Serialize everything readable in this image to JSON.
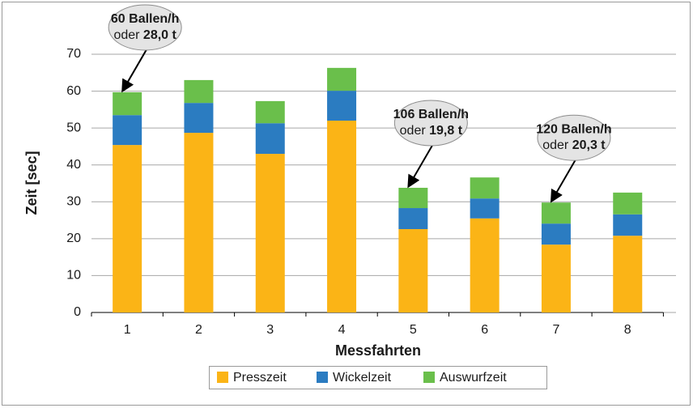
{
  "chart_data": {
    "type": "stacked_bar",
    "xlabel": "Messfahrten",
    "ylabel": "Zeit [sec]",
    "categories": [
      "1",
      "2",
      "3",
      "4",
      "5",
      "6",
      "7",
      "8"
    ],
    "series": [
      {
        "name": "Presszeit",
        "color": "#fbb416",
        "values": [
          45.4,
          48.7,
          43.0,
          52.0,
          22.6,
          25.5,
          18.4,
          20.8
        ]
      },
      {
        "name": "Wickelzeit",
        "color": "#2b7cc1",
        "values": [
          8.1,
          8.1,
          8.3,
          8.1,
          5.7,
          5.4,
          5.7,
          5.8
        ]
      },
      {
        "name": "Auswurfzeit",
        "color": "#6abf4b",
        "values": [
          6.2,
          6.2,
          6.0,
          6.2,
          5.5,
          5.7,
          5.7,
          5.9
        ]
      }
    ],
    "ylim": [
      0,
      70
    ],
    "yticks": [
      0,
      10,
      20,
      30,
      40,
      50,
      60,
      70
    ],
    "grid": true,
    "legend": "bottom",
    "annotations": [
      {
        "x": "1",
        "line1": "60 Ballen/h",
        "line2": "oder",
        "line2_bold": "28,0 t"
      },
      {
        "x": "5",
        "line1": "106 Ballen/h",
        "line2": "oder",
        "line2_bold": "19,8 t"
      },
      {
        "x": "7",
        "line1": "120 Ballen/h",
        "line2": "oder",
        "line2_bold": "20,3 t"
      }
    ]
  }
}
